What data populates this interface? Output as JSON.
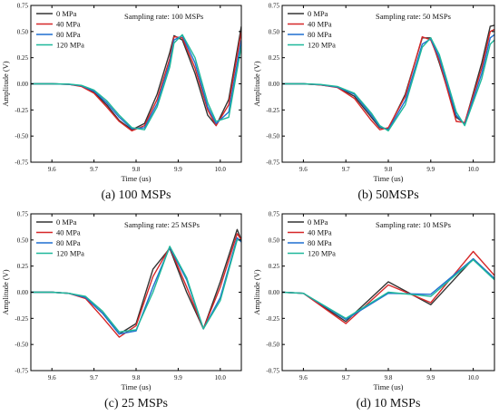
{
  "colors": {
    "0 MPa": "#333333",
    "40 MPa": "#d62728",
    "80 MPa": "#1f6fd1",
    "120 MPa": "#1fb89a"
  },
  "chart_data": [
    {
      "type": "line",
      "title": "Sampling rate: 100 MSPs",
      "caption": "(a)  100 MSPs",
      "xlabel": "Time (us)",
      "ylabel": "Amplitude (V)",
      "xlim": [
        9.55,
        10.05
      ],
      "ylim": [
        -0.75,
        0.75
      ],
      "xticks": [
        9.6,
        9.7,
        9.8,
        9.9,
        10.0
      ],
      "xtick_labels": [
        "9.6",
        "9.7",
        "9.8",
        "9.9",
        "10.0"
      ],
      "yticks": [
        -0.75,
        -0.5,
        -0.25,
        0.0,
        0.25,
        0.5,
        0.75
      ],
      "ytick_labels": [
        "-0.75",
        "-0.50",
        "-0.25",
        "0.00",
        "0.25",
        "0.50",
        "0.75"
      ],
      "grid": false,
      "legend": "top-left",
      "series": [
        {
          "name": "0 MPa",
          "x": [
            9.55,
            9.6,
            9.64,
            9.67,
            9.7,
            9.73,
            9.76,
            9.79,
            9.82,
            9.85,
            9.88,
            9.89,
            9.91,
            9.94,
            9.97,
            9.99,
            10.02,
            10.05
          ],
          "y": [
            0.0,
            0.0,
            -0.005,
            -0.02,
            -0.08,
            -0.2,
            -0.35,
            -0.44,
            -0.38,
            -0.1,
            0.3,
            0.46,
            0.42,
            0.1,
            -0.3,
            -0.4,
            -0.15,
            0.55
          ]
        },
        {
          "name": "40 MPa",
          "x": [
            9.55,
            9.6,
            9.64,
            9.67,
            9.7,
            9.73,
            9.76,
            9.79,
            9.82,
            9.85,
            9.88,
            9.89,
            9.91,
            9.94,
            9.97,
            9.99,
            10.02,
            10.05
          ],
          "y": [
            0.0,
            0.0,
            -0.005,
            -0.025,
            -0.09,
            -0.22,
            -0.36,
            -0.45,
            -0.4,
            -0.15,
            0.24,
            0.45,
            0.44,
            0.15,
            -0.25,
            -0.4,
            -0.2,
            0.5
          ]
        },
        {
          "name": "80 MPa",
          "x": [
            9.55,
            9.6,
            9.64,
            9.67,
            9.7,
            9.73,
            9.76,
            9.79,
            9.82,
            9.85,
            9.88,
            9.89,
            9.91,
            9.94,
            9.97,
            9.99,
            10.02,
            10.05
          ],
          "y": [
            0.0,
            0.0,
            -0.004,
            -0.018,
            -0.07,
            -0.18,
            -0.32,
            -0.43,
            -0.42,
            -0.19,
            0.2,
            0.42,
            0.46,
            0.2,
            -0.22,
            -0.38,
            -0.27,
            0.42
          ]
        },
        {
          "name": "120 MPa",
          "x": [
            9.55,
            9.6,
            9.64,
            9.67,
            9.7,
            9.73,
            9.76,
            9.79,
            9.82,
            9.85,
            9.88,
            9.89,
            9.91,
            9.94,
            9.97,
            9.99,
            10.02,
            10.05
          ],
          "y": [
            0.0,
            0.0,
            -0.003,
            -0.015,
            -0.06,
            -0.16,
            -0.3,
            -0.42,
            -0.44,
            -0.22,
            0.16,
            0.39,
            0.47,
            0.25,
            -0.18,
            -0.36,
            -0.32,
            0.36
          ]
        }
      ]
    },
    {
      "type": "line",
      "title": "Sampling rate: 50 MSPs",
      "caption": "(b) 50MSPs",
      "xlabel": "Time (us)",
      "ylabel": "Amplitude (V)",
      "xlim": [
        9.55,
        10.05
      ],
      "ylim": [
        -0.75,
        0.75
      ],
      "xticks": [
        9.6,
        9.7,
        9.8,
        9.9,
        10.0
      ],
      "xtick_labels": [
        "9.6",
        "9.7",
        "9.8",
        "9.9",
        "10.0"
      ],
      "yticks": [
        -0.75,
        -0.5,
        -0.25,
        0.0,
        0.25,
        0.5,
        0.75
      ],
      "ytick_labels": [
        "-0.75",
        "-0.50",
        "-0.25",
        "0.00",
        "0.25",
        "0.50",
        "0.75"
      ],
      "grid": false,
      "legend": "top-left",
      "series": [
        {
          "name": "0 MPa",
          "x": [
            9.55,
            9.6,
            9.64,
            9.68,
            9.72,
            9.76,
            9.78,
            9.8,
            9.84,
            9.88,
            9.9,
            9.92,
            9.96,
            9.98,
            10.02,
            10.04,
            10.05
          ],
          "y": [
            0.0,
            0.0,
            -0.01,
            -0.03,
            -0.12,
            -0.32,
            -0.42,
            -0.43,
            -0.1,
            0.44,
            0.44,
            0.2,
            -0.32,
            -0.38,
            0.2,
            0.55,
            0.56
          ]
        },
        {
          "name": "40 MPa",
          "x": [
            9.55,
            9.6,
            9.64,
            9.68,
            9.72,
            9.76,
            9.78,
            9.8,
            9.84,
            9.88,
            9.9,
            9.92,
            9.96,
            9.98,
            10.02,
            10.04,
            10.05
          ],
          "y": [
            0.0,
            0.0,
            -0.01,
            -0.035,
            -0.14,
            -0.35,
            -0.44,
            -0.42,
            -0.12,
            0.45,
            0.42,
            0.22,
            -0.36,
            -0.37,
            0.15,
            0.5,
            0.52
          ]
        },
        {
          "name": "80 MPa",
          "x": [
            9.55,
            9.6,
            9.64,
            9.68,
            9.72,
            9.76,
            9.78,
            9.8,
            9.84,
            9.88,
            9.9,
            9.92,
            9.96,
            9.98,
            10.02,
            10.04,
            10.05
          ],
          "y": [
            0.0,
            0.0,
            -0.008,
            -0.03,
            -0.1,
            -0.3,
            -0.41,
            -0.44,
            -0.16,
            0.38,
            0.43,
            0.25,
            -0.3,
            -0.39,
            0.1,
            0.44,
            0.47
          ]
        },
        {
          "name": "120 MPa",
          "x": [
            9.55,
            9.6,
            9.64,
            9.68,
            9.72,
            9.76,
            9.78,
            9.8,
            9.84,
            9.88,
            9.9,
            9.92,
            9.96,
            9.98,
            10.02,
            10.04,
            10.05
          ],
          "y": [
            0.0,
            0.0,
            -0.006,
            -0.025,
            -0.09,
            -0.28,
            -0.4,
            -0.45,
            -0.2,
            0.35,
            0.44,
            0.28,
            -0.27,
            -0.4,
            0.05,
            0.38,
            0.42
          ]
        }
      ]
    },
    {
      "type": "line",
      "title": "Sampling rate: 25 MSPs",
      "caption": "(c) 25 MSPs",
      "xlabel": "Time (us)",
      "ylabel": "Amplitude (V)",
      "xlim": [
        9.55,
        10.05
      ],
      "ylim": [
        -0.75,
        0.75
      ],
      "xticks": [
        9.6,
        9.7,
        9.8,
        9.9,
        10.0
      ],
      "xtick_labels": [
        "9.6",
        "9.7",
        "9.8",
        "9.9",
        "10.0"
      ],
      "yticks": [
        -0.75,
        -0.5,
        -0.25,
        0.0,
        0.25,
        0.5,
        0.75
      ],
      "ytick_labels": [
        "-0.75",
        "-0.50",
        "-0.25",
        "0.00",
        "0.25",
        "0.50",
        "0.75"
      ],
      "grid": false,
      "legend": "top-left",
      "series": [
        {
          "name": "0 MPa",
          "x": [
            9.55,
            9.6,
            9.64,
            9.68,
            9.72,
            9.76,
            9.8,
            9.84,
            9.88,
            9.92,
            9.96,
            10.0,
            10.04,
            10.05
          ],
          "y": [
            0.0,
            0.0,
            -0.01,
            -0.05,
            -0.2,
            -0.4,
            -0.3,
            0.22,
            0.42,
            0.0,
            -0.35,
            0.1,
            0.6,
            0.5
          ]
        },
        {
          "name": "40 MPa",
          "x": [
            9.55,
            9.6,
            9.64,
            9.68,
            9.72,
            9.76,
            9.8,
            9.84,
            9.88,
            9.92,
            9.96,
            10.0,
            10.04,
            10.05
          ],
          "y": [
            0.0,
            0.0,
            -0.01,
            -0.06,
            -0.24,
            -0.43,
            -0.32,
            0.15,
            0.43,
            0.05,
            -0.35,
            0.05,
            0.56,
            0.5
          ]
        },
        {
          "name": "80 MPa",
          "x": [
            9.55,
            9.6,
            9.64,
            9.68,
            9.72,
            9.76,
            9.8,
            9.84,
            9.88,
            9.92,
            9.96,
            10.0,
            10.04,
            10.05
          ],
          "y": [
            0.0,
            0.0,
            -0.01,
            -0.05,
            -0.2,
            -0.4,
            -0.37,
            0.05,
            0.43,
            0.12,
            -0.35,
            -0.05,
            0.52,
            0.48
          ]
        },
        {
          "name": "120 MPa",
          "x": [
            9.55,
            9.6,
            9.64,
            9.68,
            9.72,
            9.76,
            9.8,
            9.84,
            9.88,
            9.92,
            9.96,
            10.0,
            10.04,
            10.05
          ],
          "y": [
            0.0,
            0.0,
            -0.01,
            -0.04,
            -0.18,
            -0.38,
            -0.36,
            0.0,
            0.44,
            0.14,
            -0.35,
            -0.08,
            0.5,
            0.5
          ]
        }
      ]
    },
    {
      "type": "line",
      "title": "Sampling rate: 10 MSPs",
      "caption": "(d) 10 MSPs",
      "xlabel": "Time (us)",
      "ylabel": "Amplitude (V)",
      "xlim": [
        9.55,
        10.05
      ],
      "ylim": [
        -0.75,
        0.75
      ],
      "xticks": [
        9.6,
        9.7,
        9.8,
        9.9,
        10.0
      ],
      "xtick_labels": [
        "9.6",
        "9.7",
        "9.8",
        "9.9",
        "10.0"
      ],
      "yticks": [
        -0.75,
        -0.5,
        -0.25,
        0.0,
        0.25,
        0.5,
        0.75
      ],
      "ytick_labels": [
        "-0.75",
        "-0.50",
        "-0.25",
        "0.00",
        "0.25",
        "0.50",
        "0.75"
      ],
      "grid": false,
      "legend": "top-left",
      "series": [
        {
          "name": "0 MPa",
          "x": [
            9.55,
            9.6,
            9.7,
            9.8,
            9.9,
            10.0,
            10.05
          ],
          "y": [
            0.0,
            -0.01,
            -0.28,
            0.1,
            -0.12,
            0.32,
            0.13
          ]
        },
        {
          "name": "40 MPa",
          "x": [
            9.55,
            9.6,
            9.7,
            9.8,
            9.9,
            10.0,
            10.05
          ],
          "y": [
            0.0,
            -0.01,
            -0.3,
            0.07,
            -0.1,
            0.39,
            0.16
          ]
        },
        {
          "name": "80 MPa",
          "x": [
            9.55,
            9.6,
            9.7,
            9.8,
            9.9,
            10.0,
            10.05
          ],
          "y": [
            0.0,
            -0.01,
            -0.26,
            -0.01,
            -0.02,
            0.32,
            0.13
          ]
        },
        {
          "name": "120 MPa",
          "x": [
            9.55,
            9.6,
            9.7,
            9.8,
            9.9,
            10.0,
            10.05
          ],
          "y": [
            0.0,
            -0.01,
            -0.25,
            0.0,
            -0.04,
            0.31,
            0.12
          ]
        }
      ]
    }
  ]
}
